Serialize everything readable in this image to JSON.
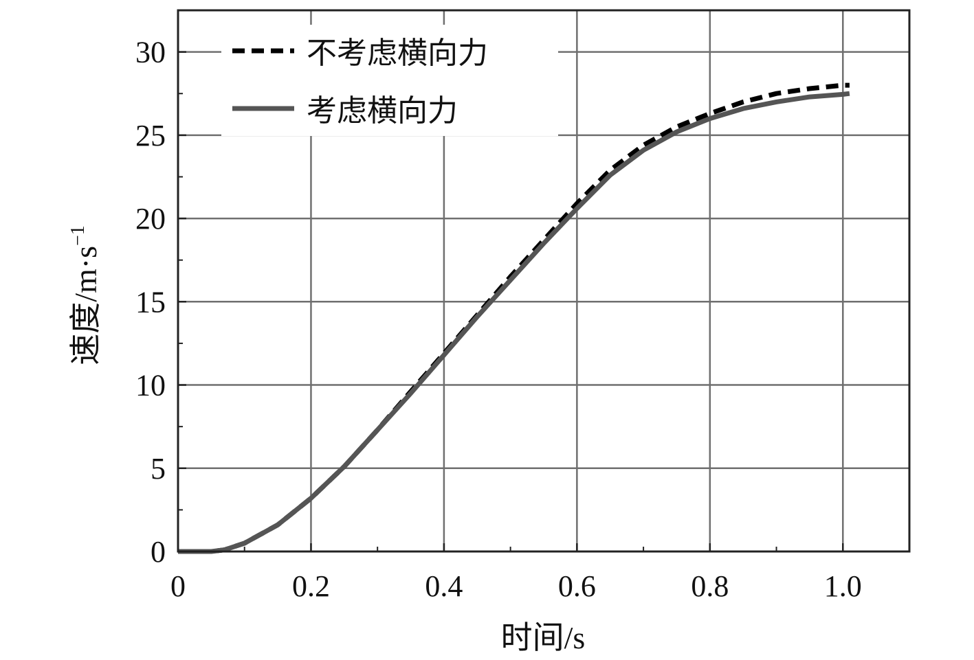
{
  "chart_data": {
    "type": "line",
    "xlabel": "时间/s",
    "ylabel_main": "速度/m·s",
    "ylabel_sup": "−1",
    "xlim": [
      0,
      1.1
    ],
    "ylim": [
      0,
      30
    ],
    "xticks": [
      0,
      0.2,
      0.4,
      0.6,
      0.8,
      1.0
    ],
    "xtick_labels": [
      "0",
      "0.2",
      "0.4",
      "0.6",
      "0.8",
      "1.0"
    ],
    "yticks": [
      0,
      5,
      10,
      15,
      20,
      25,
      30
    ],
    "ytick_labels": [
      "0",
      "5",
      "10",
      "15",
      "20",
      "25",
      "30"
    ],
    "grid": true,
    "legend_position": "top-left",
    "series": [
      {
        "name": "不考虑横向力",
        "style": "dashed",
        "color": "#000000",
        "x": [
          0,
          0.05,
          0.07,
          0.1,
          0.15,
          0.2,
          0.25,
          0.3,
          0.35,
          0.4,
          0.45,
          0.5,
          0.55,
          0.6,
          0.65,
          0.7,
          0.75,
          0.8,
          0.85,
          0.9,
          0.95,
          1.0,
          1.01
        ],
        "y": [
          0,
          0,
          0.1,
          0.5,
          1.6,
          3.2,
          5.1,
          7.3,
          9.6,
          11.9,
          14.2,
          16.5,
          18.7,
          20.9,
          22.9,
          24.4,
          25.5,
          26.3,
          27.0,
          27.5,
          27.8,
          28.0,
          28.0
        ]
      },
      {
        "name": "考虑横向力",
        "style": "solid",
        "color": "#555555",
        "x": [
          0,
          0.05,
          0.07,
          0.1,
          0.15,
          0.2,
          0.25,
          0.3,
          0.35,
          0.4,
          0.45,
          0.5,
          0.55,
          0.6,
          0.65,
          0.7,
          0.75,
          0.8,
          0.85,
          0.9,
          0.95,
          1.0,
          1.01
        ],
        "y": [
          0,
          0,
          0.1,
          0.5,
          1.6,
          3.2,
          5.1,
          7.3,
          9.5,
          11.8,
          14.1,
          16.3,
          18.5,
          20.6,
          22.6,
          24.1,
          25.2,
          26.0,
          26.6,
          27.0,
          27.3,
          27.45,
          27.5
        ]
      }
    ]
  }
}
